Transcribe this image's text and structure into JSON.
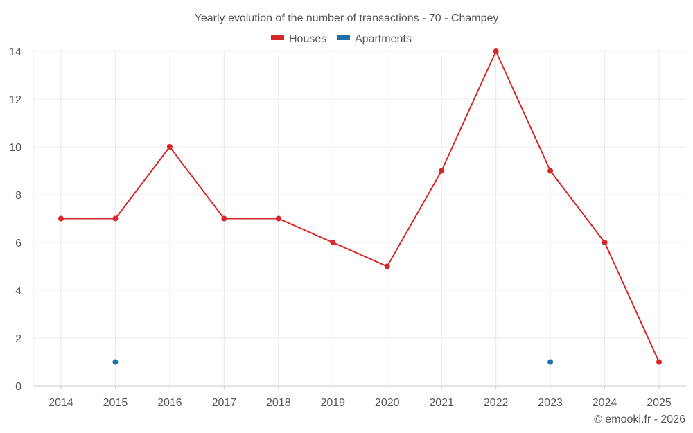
{
  "chart_data": {
    "type": "line",
    "title": "Yearly evolution of the number of transactions - 70 - Champey",
    "categories": [
      "2014",
      "2015",
      "2016",
      "2017",
      "2018",
      "2019",
      "2020",
      "2021",
      "2022",
      "2023",
      "2024",
      "2025"
    ],
    "series": [
      {
        "name": "Houses",
        "color": "#d62728",
        "values": [
          7,
          7,
          10,
          7,
          7,
          6,
          5,
          9,
          14,
          9,
          6,
          1
        ],
        "line": true
      },
      {
        "name": "Apartments",
        "color": "#1f6fa8",
        "values": [
          null,
          1,
          null,
          null,
          null,
          null,
          null,
          null,
          null,
          1,
          null,
          null
        ],
        "line": false
      }
    ],
    "yticks": [
      0,
      2,
      4,
      6,
      8,
      10,
      12,
      14
    ],
    "ylim": [
      0,
      14
    ],
    "xlabel": "",
    "ylabel": "",
    "grid": true,
    "legend_position": "top-center"
  },
  "credit": "© emooki.fr - 2026"
}
